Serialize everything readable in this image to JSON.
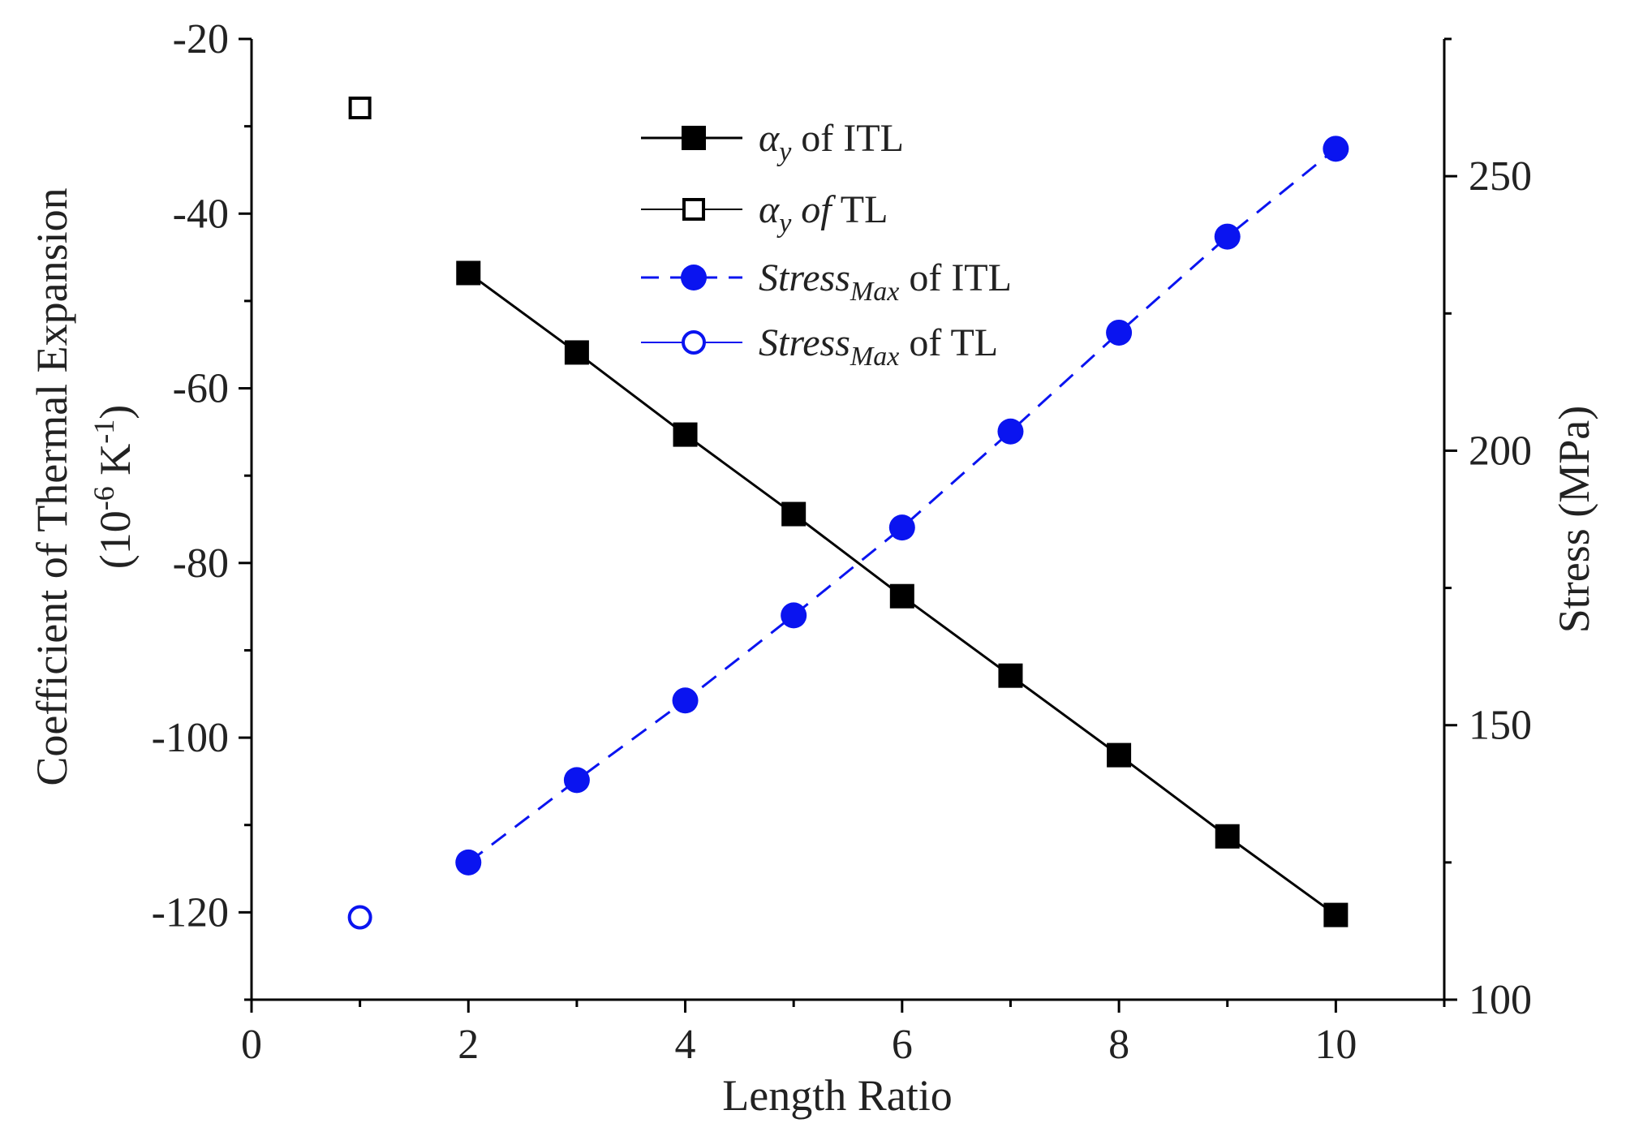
{
  "chart_data": {
    "type": "line",
    "xlabel": "Length Ratio",
    "ylabel_left": {
      "line1": "Coefficient of Thermal Expansion",
      "line2_prefix": "(10",
      "line2_exp": "-6",
      "line2_unit": " K",
      "line2_unit_exp": "-1",
      "line2_suffix": ")"
    },
    "ylabel_right": "Stress (MPa)",
    "xlim": [
      0,
      11
    ],
    "ylim_left": [
      -130,
      -20
    ],
    "ylim_right": [
      100,
      275
    ],
    "x_ticks": [
      0,
      2,
      4,
      6,
      8,
      10
    ],
    "x_tick_labels": [
      "0",
      "2",
      "4",
      "6",
      "8",
      "10"
    ],
    "y_left_ticks": [
      -20,
      -40,
      -60,
      -80,
      -100,
      -120
    ],
    "y_left_tick_labels": [
      "-20",
      "-40",
      "-60",
      "-80",
      "-100",
      "-120"
    ],
    "y_right_ticks": [
      100,
      150,
      200,
      250
    ],
    "y_right_tick_labels": [
      "100",
      "150",
      "200",
      "250"
    ],
    "series": [
      {
        "name": "αy of ITL",
        "axis": "left",
        "color": "#000000",
        "marker": "filled-square",
        "line": "solid",
        "x": [
          2,
          3,
          4,
          5,
          6,
          7,
          8,
          9,
          10
        ],
        "values": [
          -46.8,
          -55.9,
          -65.3,
          -74.4,
          -83.8,
          -92.9,
          -102.0,
          -111.3,
          -120.3
        ]
      },
      {
        "name": "αy of TL",
        "axis": "left",
        "color": "#000000",
        "marker": "open-square",
        "line": "none",
        "x": [
          1
        ],
        "values": [
          -27.9
        ]
      },
      {
        "name": "StressMax of ITL",
        "axis": "right",
        "color": "#0a14f0",
        "marker": "filled-circle",
        "line": "dashed",
        "x": [
          2,
          3,
          4,
          5,
          6,
          7,
          8,
          9,
          10
        ],
        "values": [
          125,
          140,
          154.5,
          170,
          186,
          203.5,
          221.5,
          239,
          255
        ]
      },
      {
        "name": "StressMax of TL",
        "axis": "right",
        "color": "#0a14f0",
        "marker": "open-circle",
        "line": "none",
        "x": [
          1
        ],
        "values": [
          115
        ]
      }
    ],
    "legend": {
      "placement": "top-center",
      "entries": [
        {
          "sym": "α",
          "sub": "y",
          "rest": " of ITL",
          "italic_rest": ""
        },
        {
          "sym": "α",
          "sub": "y",
          "rest": " TL",
          "italic_rest": " of"
        },
        {
          "sym": "Stress",
          "sub": "Max",
          "rest": " of ITL",
          "italic_rest": ""
        },
        {
          "sym": "Stress",
          "sub": "Max",
          "rest": " of TL",
          "italic_rest": ""
        }
      ]
    }
  }
}
